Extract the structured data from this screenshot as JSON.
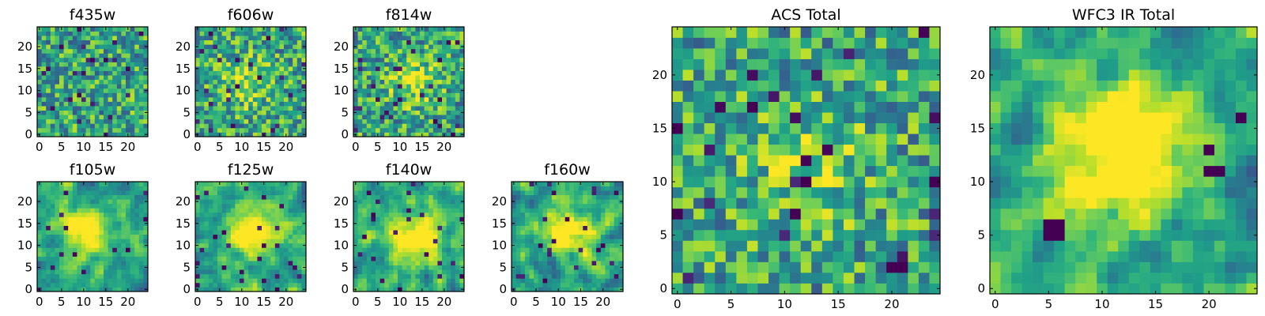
{
  "chart_data": [
    {
      "type": "heatmap",
      "title": "f435w",
      "xticks": [
        "0",
        "5",
        "10",
        "15",
        "20"
      ],
      "yticks": [
        "0",
        "5",
        "10",
        "15",
        "20"
      ],
      "xlim": [
        -0.5,
        24.5
      ],
      "ylim": [
        -0.5,
        24.5
      ],
      "grid_size": 25,
      "colormap": "viridis",
      "seed": 11,
      "blob_strength": 0.0,
      "blob_center": [
        12,
        12
      ],
      "blob_sigma": 4,
      "smooth": 0,
      "dark_fraction": 0.04,
      "extra_dark": []
    },
    {
      "type": "heatmap",
      "title": "f606w",
      "xticks": [
        "0",
        "5",
        "10",
        "15",
        "20"
      ],
      "yticks": [
        "0",
        "5",
        "10",
        "15",
        "20"
      ],
      "xlim": [
        -0.5,
        24.5
      ],
      "ylim": [
        -0.5,
        24.5
      ],
      "grid_size": 25,
      "colormap": "viridis",
      "seed": 23,
      "blob_strength": 0.25,
      "blob_center": [
        11,
        12
      ],
      "blob_sigma": 4,
      "smooth": 0,
      "dark_fraction": 0.04,
      "extra_dark": []
    },
    {
      "type": "heatmap",
      "title": "f814w",
      "xticks": [
        "0",
        "5",
        "10",
        "15",
        "20"
      ],
      "yticks": [
        "0",
        "5",
        "10",
        "15",
        "20"
      ],
      "xlim": [
        -0.5,
        24.5
      ],
      "ylim": [
        -0.5,
        24.5
      ],
      "grid_size": 25,
      "colormap": "viridis",
      "seed": 37,
      "blob_strength": 0.35,
      "blob_center": [
        13,
        12
      ],
      "blob_sigma": 3.5,
      "smooth": 0,
      "dark_fraction": 0.04,
      "extra_dark": []
    },
    {
      "type": "heatmap",
      "title": "f105w",
      "xticks": [
        "0",
        "5",
        "10",
        "15",
        "20"
      ],
      "yticks": [
        "0",
        "5",
        "10",
        "15",
        "20"
      ],
      "xlim": [
        -0.5,
        24.5
      ],
      "ylim": [
        -0.5,
        24.5
      ],
      "grid_size": 25,
      "colormap": "viridis",
      "seed": 41,
      "blob_strength": 0.5,
      "blob_center": [
        11,
        13
      ],
      "blob_sigma": 4,
      "smooth": 1,
      "dark_fraction": 0.03,
      "extra_dark": []
    },
    {
      "type": "heatmap",
      "title": "f125w",
      "xticks": [
        "0",
        "5",
        "10",
        "15",
        "20"
      ],
      "yticks": [
        "0",
        "5",
        "10",
        "15",
        "20"
      ],
      "xlim": [
        -0.5,
        24.5
      ],
      "ylim": [
        -0.5,
        24.5
      ],
      "grid_size": 25,
      "colormap": "viridis",
      "seed": 53,
      "blob_strength": 0.5,
      "blob_center": [
        13,
        13
      ],
      "blob_sigma": 4,
      "smooth": 1,
      "dark_fraction": 0.03,
      "extra_dark": []
    },
    {
      "type": "heatmap",
      "title": "f140w",
      "xticks": [
        "0",
        "5",
        "10",
        "15",
        "20"
      ],
      "yticks": [
        "0",
        "5",
        "10",
        "15",
        "20"
      ],
      "xlim": [
        -0.5,
        24.5
      ],
      "ylim": [
        -0.5,
        24.5
      ],
      "grid_size": 25,
      "colormap": "viridis",
      "seed": 67,
      "blob_strength": 0.5,
      "blob_center": [
        14,
        12
      ],
      "blob_sigma": 4,
      "smooth": 1,
      "dark_fraction": 0.03,
      "extra_dark": []
    },
    {
      "type": "heatmap",
      "title": "f160w",
      "xticks": [
        "0",
        "5",
        "10",
        "15",
        "20"
      ],
      "yticks": [
        "0",
        "5",
        "10",
        "15",
        "20"
      ],
      "xlim": [
        -0.5,
        24.5
      ],
      "ylim": [
        -0.5,
        24.5
      ],
      "grid_size": 25,
      "colormap": "viridis",
      "seed": 79,
      "blob_strength": 0.6,
      "blob_center": [
        12,
        13
      ],
      "blob_sigma": 3.5,
      "smooth": 1,
      "dark_fraction": 0.03,
      "extra_dark": [
        [
          7,
          2
        ],
        [
          20,
          10
        ]
      ]
    },
    {
      "type": "heatmap",
      "title": "ACS Total",
      "xticks": [
        "0",
        "5",
        "10",
        "15",
        "20"
      ],
      "yticks": [
        "0",
        "5",
        "10",
        "15",
        "20"
      ],
      "xlim": [
        -0.5,
        24.5
      ],
      "ylim": [
        -0.5,
        24.5
      ],
      "grid_size": 25,
      "colormap": "viridis",
      "seed": 97,
      "blob_strength": 0.2,
      "blob_center": [
        12,
        12
      ],
      "blob_sigma": 4,
      "smooth": 0,
      "dark_fraction": 0.035,
      "extra_dark": [
        [
          11,
          7
        ],
        [
          21,
          2
        ],
        [
          0,
          7
        ],
        [
          0,
          15
        ],
        [
          24,
          10
        ],
        [
          7,
          17
        ],
        [
          12,
          10
        ]
      ]
    },
    {
      "type": "heatmap",
      "title": "WFC3 IR Total",
      "xticks": [
        "0",
        "5",
        "10",
        "15",
        "20"
      ],
      "yticks": [
        "0",
        "5",
        "10",
        "15",
        "20"
      ],
      "xlim": [
        -0.5,
        24.5
      ],
      "ylim": [
        -0.5,
        24.5
      ],
      "grid_size": 25,
      "colormap": "viridis",
      "seed": 113,
      "blob_strength": 0.7,
      "blob_center": [
        12,
        12.5
      ],
      "blob_sigma": 4,
      "smooth": 1,
      "dark_fraction": 0.0,
      "extra_dark": [
        [
          5,
          5
        ],
        [
          6,
          5
        ],
        [
          5,
          6
        ],
        [
          6,
          6
        ],
        [
          20,
          11
        ],
        [
          21,
          11
        ],
        [
          20,
          13
        ],
        [
          23,
          16
        ]
      ]
    }
  ]
}
